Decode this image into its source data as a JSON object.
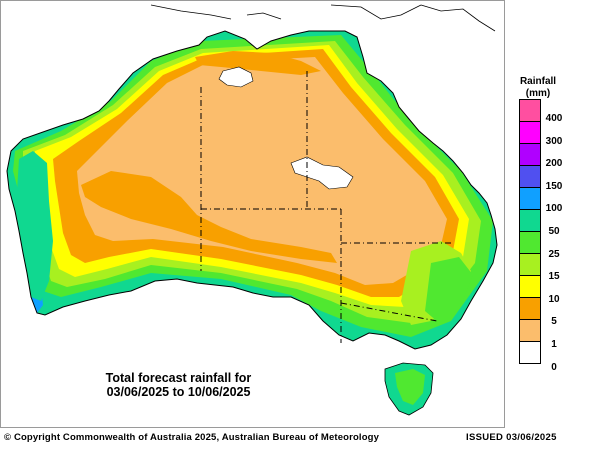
{
  "caption": {
    "line1": "Total forecast rainfall for",
    "line2": "03/06/2025 to 10/06/2025"
  },
  "legend": {
    "title_line1": "Rainfall",
    "title_line2": "(mm)",
    "labels": [
      "400",
      "300",
      "200",
      "150",
      "100",
      "50",
      "25",
      "15",
      "10",
      "5",
      "1",
      "0"
    ],
    "colors": [
      "#ff4fa0",
      "#ff00ff",
      "#b000ff",
      "#5050f0",
      "#10a0ff",
      "#10d890",
      "#50e830",
      "#a8f020",
      "#ffff00",
      "#f8a000",
      "#fbbd6c",
      "#ffffff"
    ]
  },
  "footer": {
    "copyright": "© Copyright Commonwealth of Australia 2025, Australian Bureau of Meteorology",
    "issued": "ISSUED 03/06/2025"
  },
  "colors": {
    "lt1": "#fbbd6c",
    "1to5": "#f8a000",
    "5to10": "#ffff00",
    "10to15": "#a8f020",
    "15to25": "#50e830",
    "25to50": "#10d890",
    "50to100": "#10a0ff"
  }
}
